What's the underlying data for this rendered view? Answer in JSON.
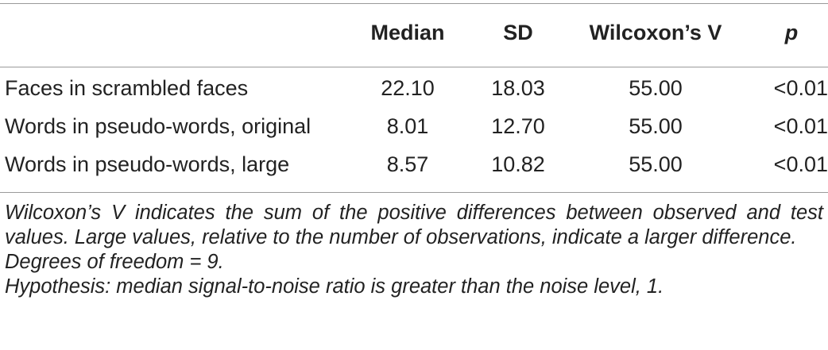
{
  "table": {
    "headers": {
      "median": "Median",
      "sd": "SD",
      "wilcoxon": "Wilcoxon’s V",
      "p": "p"
    },
    "rows": [
      {
        "label": "Faces in scrambled faces",
        "median": "22.10",
        "sd": "18.03",
        "wilcoxon": "55.00",
        "p": "<0.01"
      },
      {
        "label": "Words in pseudo-words, original",
        "median": "8.01",
        "sd": "12.70",
        "wilcoxon": "55.00",
        "p": "<0.01"
      },
      {
        "label": "Words in pseudo-words, large",
        "median": "8.57",
        "sd": "10.82",
        "wilcoxon": "55.00",
        "p": "<0.01"
      }
    ]
  },
  "notes": [
    "Wilcoxon’s V indicates the sum of the positive differences between observed and test values. Large values, relative to the number of observations, indicate a larger difference.",
    "Degrees of freedom = 9.",
    "Hypothesis: median signal-to-noise ratio is greater than the noise level, 1."
  ]
}
